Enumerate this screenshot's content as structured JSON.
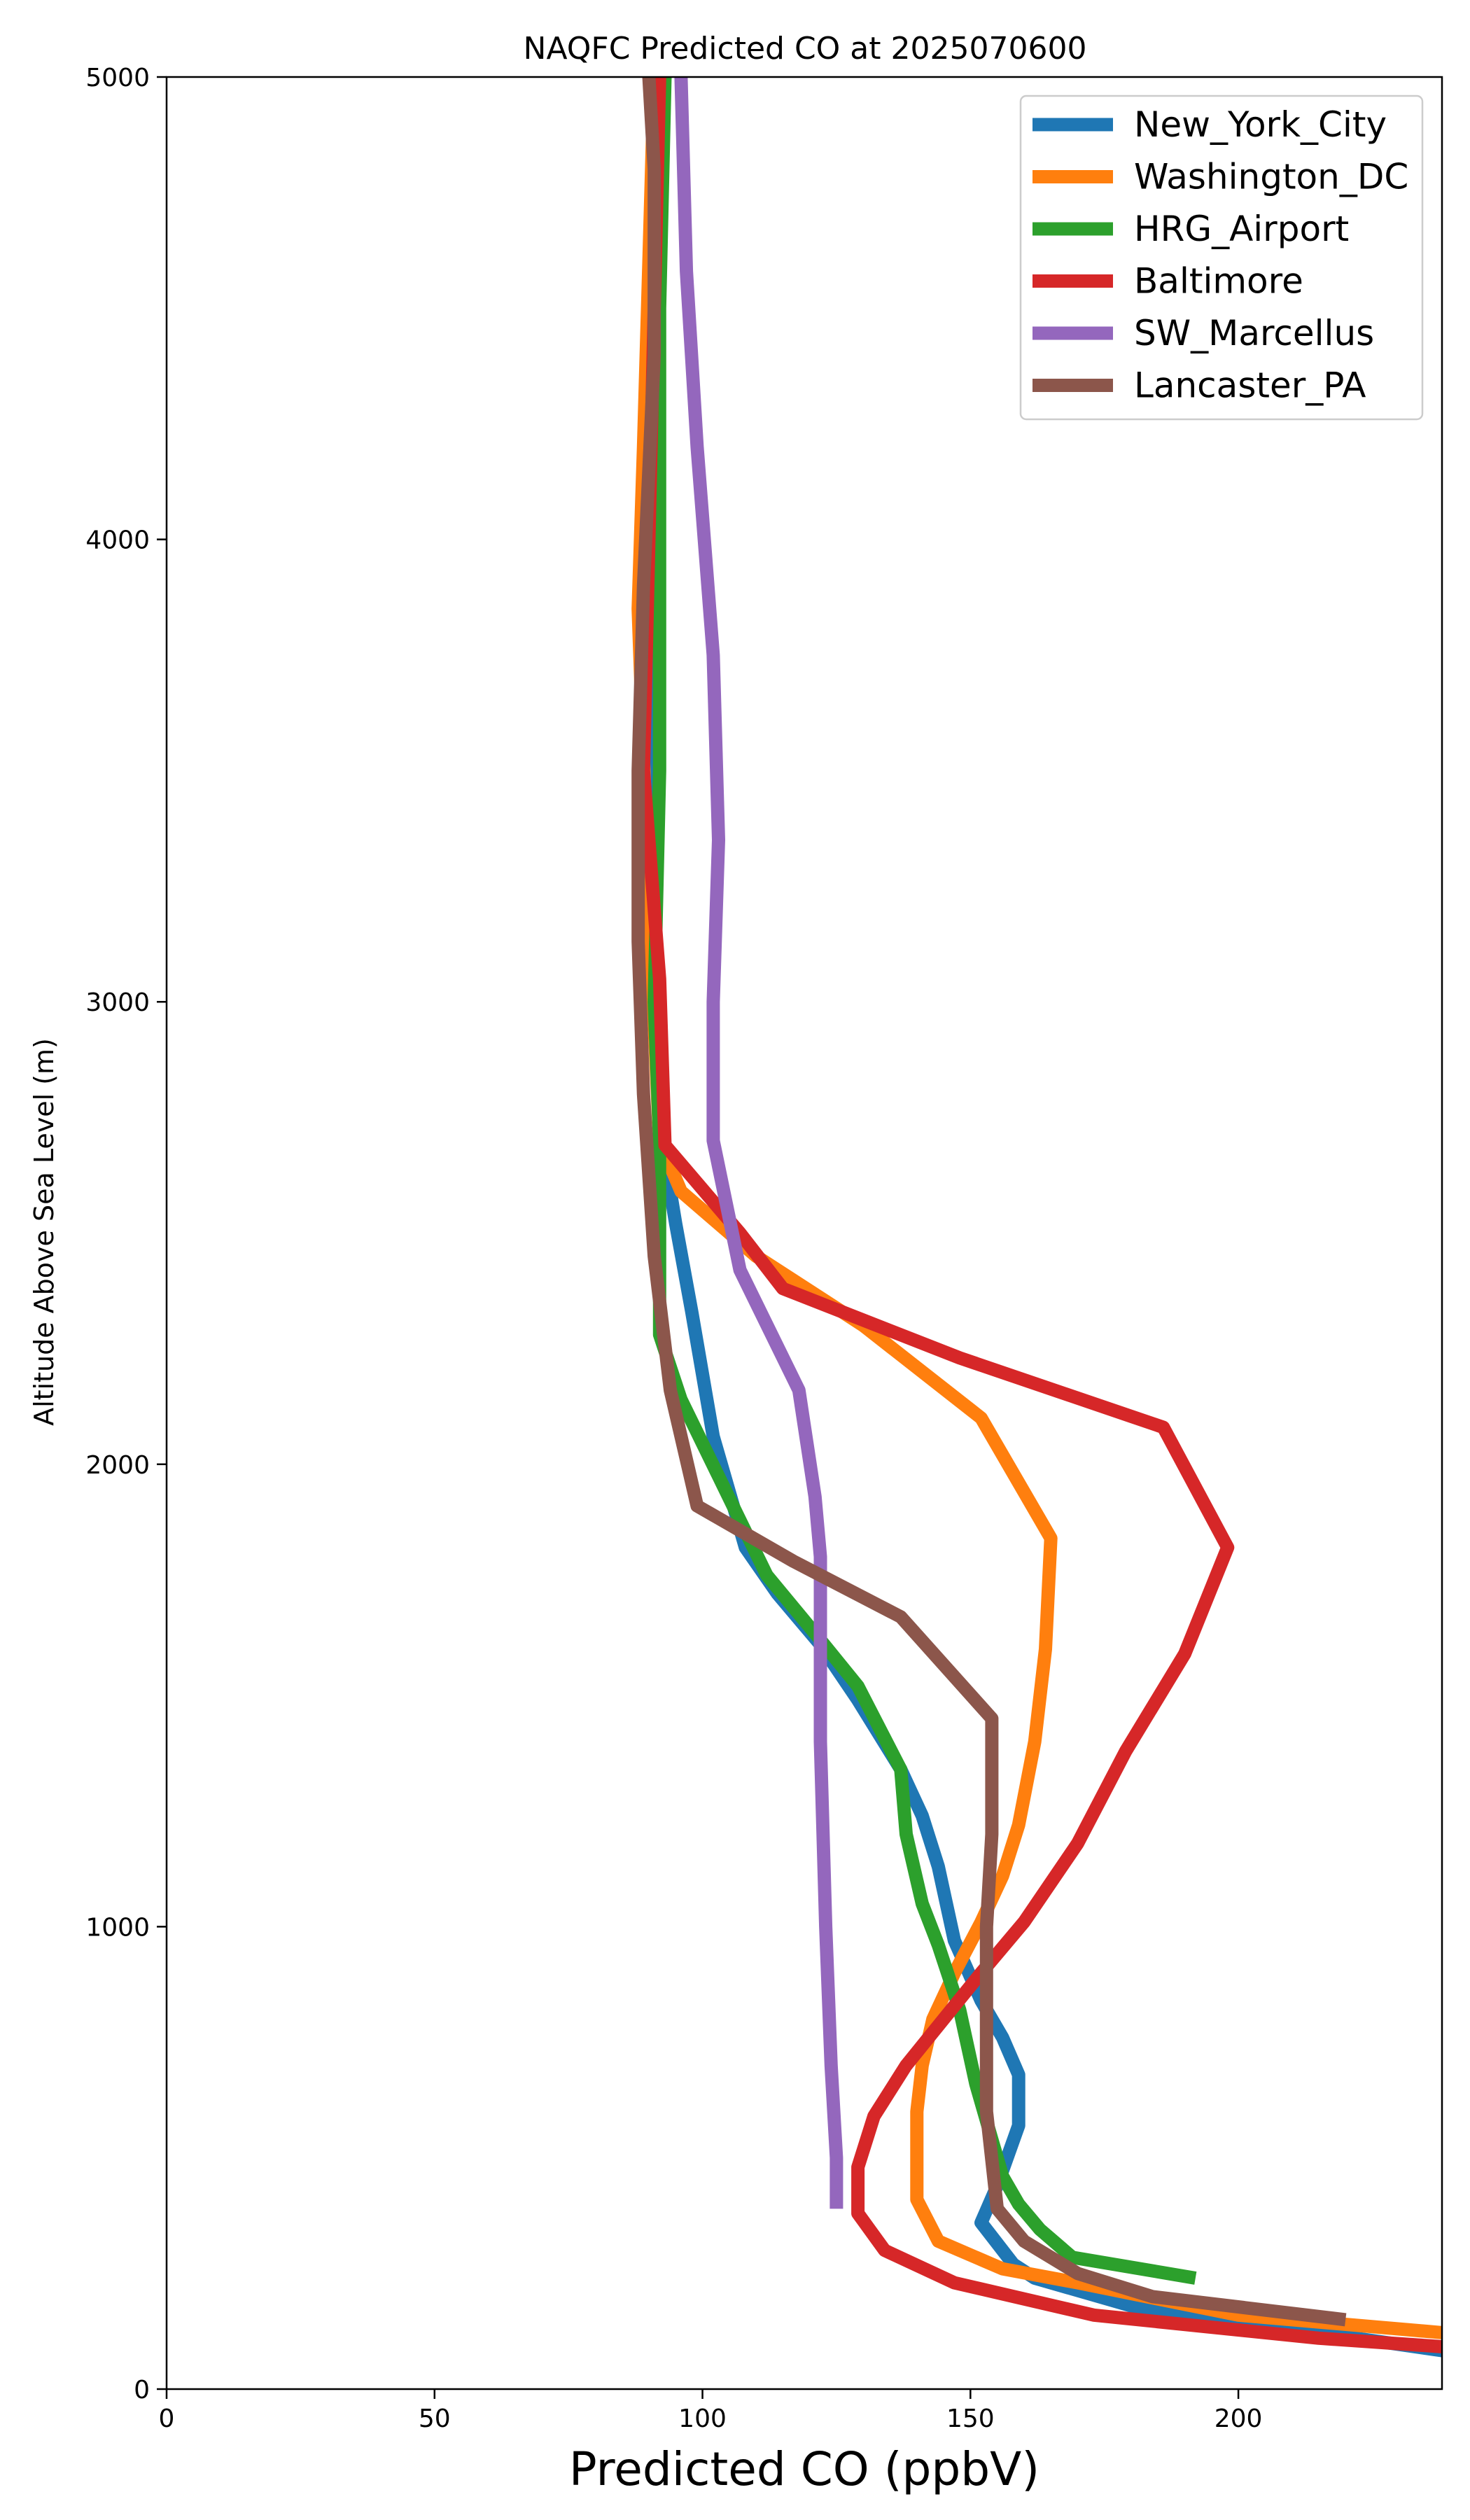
{
  "chart_data": {
    "type": "line",
    "title": "NAQFC Predicted CO at 2025070600",
    "xlabel": "Predicted CO (ppbV)",
    "ylabel": "Altitude Above Sea Level (m)",
    "xlim": [
      0,
      238
    ],
    "ylim": [
      0,
      5000
    ],
    "x_ticks": [
      0,
      50,
      100,
      150,
      200
    ],
    "y_ticks": [
      0,
      1000,
      2000,
      3000,
      4000,
      5000
    ],
    "grid": false,
    "legend_position": "top-right",
    "series": [
      {
        "name": "New_York_City",
        "color": "#1f77b4",
        "points": [
          [
            240,
            80
          ],
          [
            180,
            180
          ],
          [
            162,
            240
          ],
          [
            158,
            270
          ],
          [
            152,
            360
          ],
          [
            155,
            440
          ],
          [
            159,
            570
          ],
          [
            159,
            680
          ],
          [
            156,
            760
          ],
          [
            152,
            840
          ],
          [
            147,
            970
          ],
          [
            144,
            1130
          ],
          [
            141,
            1240
          ],
          [
            137,
            1340
          ],
          [
            129,
            1490
          ],
          [
            122,
            1610
          ],
          [
            114,
            1720
          ],
          [
            108,
            1820
          ],
          [
            102,
            2060
          ],
          [
            98,
            2330
          ],
          [
            95,
            2520
          ],
          [
            93,
            2660
          ],
          [
            91,
            3000
          ],
          [
            90,
            3500
          ],
          [
            90,
            4000
          ],
          [
            91,
            4500
          ],
          [
            92,
            5000
          ]
        ]
      },
      {
        "name": "Washington_DC",
        "color": "#ff7f0e",
        "points": [
          [
            240,
            120
          ],
          [
            200,
            160
          ],
          [
            170,
            230
          ],
          [
            156,
            260
          ],
          [
            144,
            320
          ],
          [
            140,
            410
          ],
          [
            140,
            520
          ],
          [
            140,
            600
          ],
          [
            141,
            700
          ],
          [
            143,
            800
          ],
          [
            147,
            900
          ],
          [
            152,
            1010
          ],
          [
            156,
            1110
          ],
          [
            159,
            1220
          ],
          [
            162,
            1400
          ],
          [
            164,
            1600
          ],
          [
            165,
            1840
          ],
          [
            152,
            2100
          ],
          [
            130,
            2300
          ],
          [
            110,
            2450
          ],
          [
            96,
            2590
          ],
          [
            92,
            2700
          ],
          [
            90,
            3200
          ],
          [
            88,
            3850
          ],
          [
            89,
            4200
          ],
          [
            90,
            4600
          ],
          [
            91,
            5000
          ]
        ]
      },
      {
        "name": "HRG_Airport",
        "color": "#2ca02c",
        "points": [
          [
            192,
            240
          ],
          [
            169,
            285
          ],
          [
            163,
            345
          ],
          [
            159,
            400
          ],
          [
            156,
            460
          ],
          [
            154,
            540
          ],
          [
            151,
            660
          ],
          [
            148,
            820
          ],
          [
            144,
            960
          ],
          [
            141,
            1050
          ],
          [
            138,
            1200
          ],
          [
            137,
            1340
          ],
          [
            129,
            1520
          ],
          [
            122,
            1620
          ],
          [
            112,
            1760
          ],
          [
            104,
            1950
          ],
          [
            96,
            2140
          ],
          [
            92,
            2280
          ],
          [
            92,
            2700
          ],
          [
            91,
            3000
          ],
          [
            92,
            3500
          ],
          [
            92,
            4000
          ],
          [
            92,
            4500
          ],
          [
            93,
            5000
          ]
        ]
      },
      {
        "name": "Baltimore",
        "color": "#d62728",
        "points": [
          [
            240,
            90
          ],
          [
            215,
            110
          ],
          [
            173,
            160
          ],
          [
            147,
            230
          ],
          [
            134,
            300
          ],
          [
            129,
            380
          ],
          [
            129,
            480
          ],
          [
            132,
            590
          ],
          [
            138,
            700
          ],
          [
            145,
            800
          ],
          [
            152,
            900
          ],
          [
            160,
            1010
          ],
          [
            170,
            1180
          ],
          [
            179,
            1380
          ],
          [
            190,
            1590
          ],
          [
            198,
            1820
          ],
          [
            186,
            2080
          ],
          [
            148,
            2230
          ],
          [
            115,
            2380
          ],
          [
            107,
            2500
          ],
          [
            93,
            2690
          ],
          [
            92,
            3050
          ],
          [
            89,
            3500
          ],
          [
            90,
            4000
          ],
          [
            91,
            4500
          ],
          [
            92,
            5000
          ]
        ]
      },
      {
        "name": "SW_Marcellus",
        "color": "#9467bd",
        "points": [
          [
            125,
            390
          ],
          [
            125,
            500
          ],
          [
            124,
            700
          ],
          [
            123,
            1000
          ],
          [
            122,
            1400
          ],
          [
            122,
            1800
          ],
          [
            121,
            1930
          ],
          [
            118,
            2160
          ],
          [
            107,
            2420
          ],
          [
            102,
            2700
          ],
          [
            102,
            3000
          ],
          [
            103,
            3350
          ],
          [
            102,
            3750
          ],
          [
            99,
            4200
          ],
          [
            97,
            4580
          ],
          [
            96,
            5000
          ]
        ]
      },
      {
        "name": "Lancaster_PA",
        "color": "#8c564b",
        "points": [
          [
            220,
            150
          ],
          [
            184,
            200
          ],
          [
            170,
            250
          ],
          [
            160,
            320
          ],
          [
            155,
            390
          ],
          [
            153,
            600
          ],
          [
            153,
            800
          ],
          [
            153,
            1000
          ],
          [
            154,
            1200
          ],
          [
            154,
            1450
          ],
          [
            137,
            1670
          ],
          [
            117,
            1790
          ],
          [
            99,
            1910
          ],
          [
            94,
            2160
          ],
          [
            91,
            2450
          ],
          [
            89,
            2800
          ],
          [
            88,
            3130
          ],
          [
            88,
            3500
          ],
          [
            89,
            3900
          ],
          [
            91,
            4400
          ],
          [
            91,
            4800
          ],
          [
            90,
            5000
          ]
        ]
      }
    ]
  }
}
